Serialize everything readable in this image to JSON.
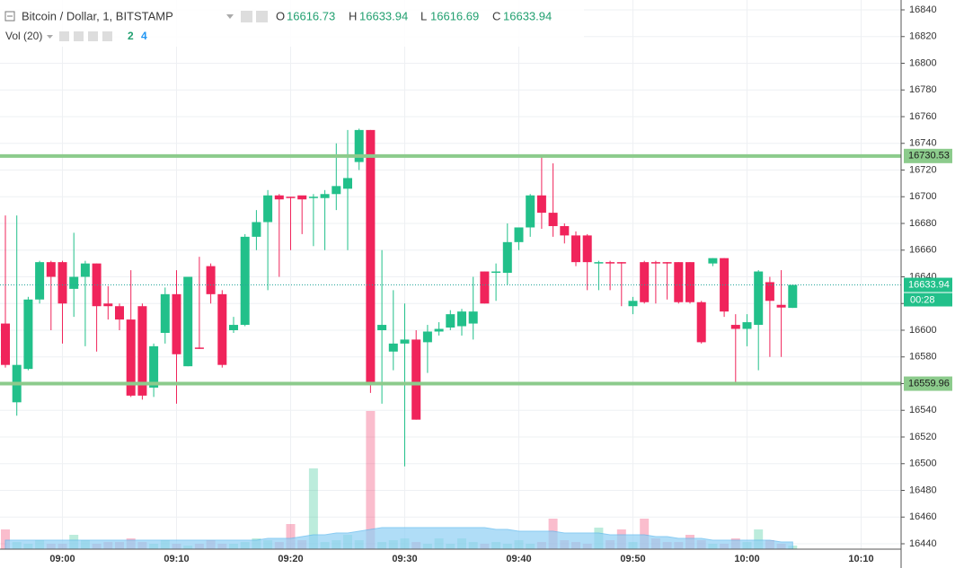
{
  "chart_data": {
    "type": "candlestick",
    "title": "Bitcoin / Dollar, 1, BITSTAMP",
    "ohlc_labels": [
      "O",
      "H",
      "L",
      "C"
    ],
    "volume_title": "Vol (20)",
    "countdown": "00:28",
    "up_color": "#22c08a",
    "down_color": "#f0245b",
    "level_color": "#8ccb8c",
    "volume_ma_color": "#8fd0f5",
    "grid": true,
    "categories": [
      null,
      null,
      null,
      null,
      null,
      "09:00",
      null,
      null,
      null,
      null,
      null,
      null,
      null,
      null,
      null,
      "09:10",
      null,
      null,
      null,
      null,
      null,
      null,
      null,
      null,
      null,
      "09:20",
      null,
      null,
      null,
      null,
      null,
      null,
      null,
      null,
      null,
      "09:30",
      null,
      null,
      null,
      null,
      null,
      null,
      null,
      null,
      null,
      "09:40",
      null,
      null,
      null,
      null,
      null,
      null,
      null,
      null,
      null,
      "09:50",
      null,
      null,
      null,
      null,
      null,
      null,
      null,
      null,
      null,
      "10:00",
      null,
      null,
      null,
      null,
      null,
      null,
      null,
      null,
      null,
      "10:10",
      null,
      null,
      null
    ],
    "open": [
      16605,
      16546,
      16571,
      16623,
      16651,
      16651,
      16631,
      16640,
      16650,
      16620,
      16618,
      16608,
      16618,
      16557,
      16598,
      16627,
      16573,
      16587,
      16648,
      16627,
      16600,
      16604,
      16670,
      16681,
      16701,
      16700,
      16701,
      16699,
      16699,
      16702,
      16706,
      16726,
      16750,
      16600,
      16584,
      16590,
      16593,
      16591,
      16599,
      16602,
      16603,
      16605,
      16644,
      16643,
      16643,
      16666,
      16677,
      16701,
      16688,
      16678,
      16671,
      16671,
      16650,
      16651,
      16651,
      16618,
      16651,
      16651,
      16651,
      16651,
      16651,
      16621,
      16650,
      16654,
      16604,
      16601,
      16604,
      16636,
      16619,
      16616.73,
      null,
      null,
      null,
      null,
      null,
      null,
      null,
      null,
      null
    ],
    "high": [
      16686,
      16686,
      16625,
      16652,
      16652,
      16652,
      16673,
      16652,
      16650,
      16633,
      16620,
      16645,
      16620,
      16590,
      16632,
      16645,
      16640,
      16655,
      16650,
      16630,
      16610,
      16672,
      16690,
      16705,
      16702,
      16700,
      16700,
      16702,
      16705,
      16740,
      16750,
      16751,
      16750,
      16660,
      16630,
      16620,
      16600,
      16604,
      16606,
      16615,
      16616,
      16640,
      16644,
      16650,
      16680,
      16677,
      16702,
      16730,
      16725,
      16680,
      16674,
      16672,
      16652,
      16652,
      16651,
      16625,
      16652,
      16652,
      16651,
      16651,
      16651,
      16622,
      16654,
      16654,
      16612,
      16612,
      16645,
      16640,
      16645,
      16633.94,
      null,
      null,
      null,
      null,
      null,
      null,
      null,
      null,
      null
    ],
    "low": [
      16572,
      16536,
      16570,
      16620,
      16600,
      16590,
      16610,
      16588,
      16584,
      16608,
      16600,
      16550,
      16548,
      16550,
      16590,
      16545,
      16573,
      16586,
      16620,
      16572,
      16598,
      16603,
      16660,
      16630,
      16640,
      16660,
      16672,
      16663,
      16660,
      16690,
      16660,
      16720,
      16553,
      16545,
      16570,
      16498,
      16533,
      16568,
      16596,
      16600,
      16596,
      16593,
      16620,
      16622,
      16634,
      16660,
      16670,
      16676,
      16670,
      16665,
      16648,
      16630,
      16630,
      16630,
      16618,
      16612,
      16620,
      16620,
      16623,
      16620,
      16620,
      16590,
      16648,
      16610,
      16560,
      16588,
      16570,
      16580,
      16580,
      16616.69,
      null,
      null,
      null,
      null,
      null,
      null,
      null,
      null,
      null
    ],
    "close": [
      16574,
      16574,
      16623,
      16651,
      16640,
      16620,
      16640,
      16650,
      16618,
      16618,
      16608,
      16551,
      16551,
      16588,
      16627,
      16582,
      16640,
      16586,
      16627,
      16574,
      16604,
      16670,
      16681,
      16701,
      16698,
      16699,
      16698,
      16700,
      16702,
      16708,
      16714,
      16750,
      16560,
      16604,
      16590,
      16593,
      16533,
      16599,
      16601,
      16612,
      16614,
      16614,
      16620,
      16644,
      16666,
      16677,
      16701,
      16688,
      16678,
      16671,
      16651,
      16651,
      16651,
      16650,
      16650,
      16622,
      16621,
      16650,
      16650,
      16621,
      16621,
      16591,
      16654,
      16614,
      16601,
      16606,
      16644,
      16622,
      16617,
      16633.94,
      null,
      null,
      null,
      null,
      null,
      null,
      null,
      null,
      null
    ],
    "volume": [
      11,
      4,
      3,
      5,
      3,
      3,
      8,
      5,
      3,
      4,
      4,
      6,
      4,
      3,
      5,
      3,
      2,
      3,
      5,
      3,
      3,
      4,
      6,
      5,
      4,
      14,
      5,
      45,
      4,
      5,
      8,
      5,
      77,
      4,
      5,
      6,
      4,
      3,
      6,
      3,
      6,
      4,
      3,
      4,
      3,
      5,
      3,
      4,
      17,
      5,
      4,
      3,
      12,
      5,
      11,
      4,
      17,
      6,
      4,
      4,
      8,
      5,
      3,
      3,
      6,
      4,
      11,
      5,
      3,
      2,
      null,
      null,
      null,
      null,
      null,
      null,
      null,
      null,
      null
    ],
    "volume_ma": [
      5,
      5,
      5,
      5,
      5,
      5,
      5,
      5,
      5,
      5,
      5,
      5,
      5,
      5,
      5,
      5,
      5,
      5,
      5,
      5,
      5,
      5,
      5,
      6,
      6,
      6,
      7,
      8,
      8,
      9,
      9,
      10,
      11,
      12,
      12,
      12,
      12,
      12,
      12,
      12,
      12,
      12,
      12,
      11,
      11,
      10,
      10,
      10,
      10,
      9,
      9,
      9,
      9,
      8,
      8,
      8,
      8,
      7,
      7,
      6,
      6,
      6,
      5,
      5,
      5,
      5,
      5,
      5,
      4,
      4,
      null,
      null,
      null,
      null,
      null,
      null,
      null,
      null,
      null
    ],
    "levels": [
      16730.53,
      16559.96
    ],
    "ylim": [
      16440,
      16840
    ],
    "yticks": [
      16440,
      16460,
      16480,
      16500,
      16520,
      16540,
      16560,
      16580,
      16600,
      16620,
      16640,
      16660,
      16680,
      16700,
      16720,
      16740,
      16760,
      16780,
      16800,
      16820,
      16840
    ]
  }
}
